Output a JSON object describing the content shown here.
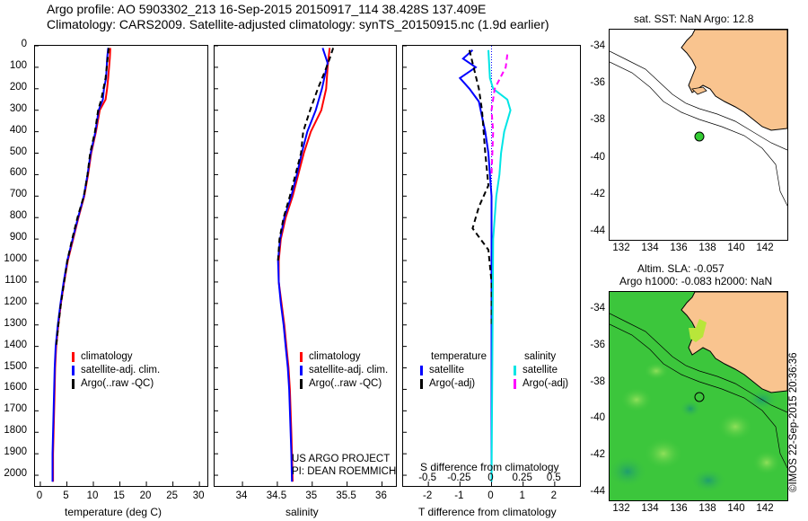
{
  "header": {
    "line1": "Argo profile: AO 5903302_213 16-Sep-2015 20150917_114 38.428S 137.409E",
    "line2": "Climatology: CARS2009. Satellite-adjusted climatology: synTS_20150915.nc (1.9d earlier)"
  },
  "depth_ticks": [
    "0",
    "100",
    "200",
    "300",
    "400",
    "500",
    "600",
    "700",
    "800",
    "900",
    "1000",
    "1100",
    "1200",
    "1300",
    "1400",
    "1500",
    "1600",
    "1700",
    "1800",
    "1900",
    "2000"
  ],
  "colors": {
    "climatology": "#ff0000",
    "satellite": "#0000ff",
    "argo": "#000000",
    "sal_sat": "#00e5e5",
    "sal_argo": "#ff00ff",
    "land": "#f9c48f",
    "sst_map_bg": "#ffffff",
    "sla_map_green": "#3cc63c"
  },
  "chart_data": [
    {
      "type": "line",
      "name": "temperature",
      "xlabel": "temperature (deg C)",
      "ylabel": "",
      "xlim": [
        -1,
        31.5
      ],
      "ylim": [
        2050,
        0
      ],
      "xticks": [
        "0",
        "5",
        "10",
        "15",
        "20",
        "25",
        "30"
      ],
      "series": [
        {
          "name": "climatology",
          "style": "solid",
          "color": "#ff0000",
          "points": [
            [
              13.2,
              10
            ],
            [
              13.1,
              60
            ],
            [
              12.8,
              150
            ],
            [
              12.6,
              200
            ],
            [
              12.3,
              250
            ],
            [
              11.2,
              300
            ],
            [
              10.5,
              400
            ],
            [
              9.6,
              500
            ],
            [
              9.0,
              600
            ],
            [
              8.3,
              700
            ],
            [
              7.2,
              800
            ],
            [
              6.2,
              900
            ],
            [
              5.2,
              1000
            ],
            [
              4.5,
              1100
            ],
            [
              3.9,
              1200
            ],
            [
              3.4,
              1300
            ],
            [
              3.0,
              1400
            ],
            [
              2.8,
              1500
            ],
            [
              2.7,
              1600
            ],
            [
              2.6,
              1700
            ],
            [
              2.5,
              1800
            ],
            [
              2.4,
              1900
            ],
            [
              2.4,
              2030
            ]
          ]
        },
        {
          "name": "satellite-adj. clim.",
          "style": "solid",
          "color": "#0000ff",
          "points": [
            [
              12.8,
              10
            ],
            [
              12.6,
              60
            ],
            [
              12.4,
              150
            ],
            [
              12.0,
              200
            ],
            [
              11.8,
              250
            ],
            [
              11.0,
              300
            ],
            [
              10.4,
              400
            ],
            [
              9.5,
              500
            ],
            [
              8.9,
              600
            ],
            [
              8.2,
              700
            ],
            [
              7.1,
              800
            ],
            [
              6.1,
              900
            ],
            [
              5.1,
              1000
            ],
            [
              4.4,
              1100
            ],
            [
              3.8,
              1200
            ],
            [
              3.3,
              1300
            ],
            [
              2.9,
              1400
            ],
            [
              2.7,
              1500
            ],
            [
              2.6,
              1600
            ],
            [
              2.5,
              1700
            ],
            [
              2.4,
              1800
            ],
            [
              2.3,
              1900
            ],
            [
              2.3,
              2030
            ]
          ]
        },
        {
          "name": "Argo(..raw -QC)",
          "style": "dashed",
          "color": "#000000",
          "points": [
            [
              12.9,
              10
            ],
            [
              12.7,
              60
            ],
            [
              12.3,
              150
            ],
            [
              11.9,
              200
            ],
            [
              11.5,
              250
            ],
            [
              10.9,
              300
            ],
            [
              10.3,
              400
            ],
            [
              9.4,
              500
            ],
            [
              8.9,
              600
            ],
            [
              8.2,
              700
            ],
            [
              7.0,
              800
            ],
            [
              6.0,
              900
            ],
            [
              5.1,
              1000
            ],
            [
              4.5,
              1100
            ],
            [
              3.9,
              1200
            ],
            [
              3.4,
              1300
            ],
            [
              3.0,
              1400
            ]
          ]
        }
      ],
      "legend": [
        "climatology",
        "satellite-adj. clim.",
        "Argo(..raw -QC)"
      ]
    },
    {
      "type": "line",
      "name": "salinity",
      "xlabel": "salinity",
      "xlim": [
        33.6,
        36.2
      ],
      "ylim": [
        2050,
        0
      ],
      "xticks": [
        "34",
        "34.5",
        "35",
        "35.5",
        "36"
      ],
      "series": [
        {
          "name": "climatology",
          "style": "solid",
          "color": "#ff0000",
          "points": [
            [
              35.25,
              10
            ],
            [
              35.22,
              100
            ],
            [
              35.2,
              200
            ],
            [
              35.13,
              300
            ],
            [
              34.98,
              400
            ],
            [
              34.88,
              500
            ],
            [
              34.8,
              600
            ],
            [
              34.72,
              700
            ],
            [
              34.62,
              800
            ],
            [
              34.55,
              900
            ],
            [
              34.52,
              1000
            ],
            [
              34.52,
              1100
            ],
            [
              34.56,
              1200
            ],
            [
              34.6,
              1300
            ],
            [
              34.63,
              1400
            ],
            [
              34.66,
              1500
            ],
            [
              34.68,
              1600
            ],
            [
              34.69,
              1700
            ],
            [
              34.7,
              1800
            ],
            [
              34.71,
              1900
            ],
            [
              34.72,
              2030
            ]
          ]
        },
        {
          "name": "satellite-adj. clim.",
          "style": "solid",
          "color": "#0000ff",
          "points": [
            [
              35.15,
              10
            ],
            [
              35.22,
              80
            ],
            [
              35.14,
              200
            ],
            [
              35.05,
              300
            ],
            [
              34.93,
              400
            ],
            [
              34.85,
              500
            ],
            [
              34.78,
              600
            ],
            [
              34.7,
              700
            ],
            [
              34.6,
              800
            ],
            [
              34.54,
              900
            ],
            [
              34.51,
              1000
            ],
            [
              34.52,
              1100
            ],
            [
              34.55,
              1200
            ],
            [
              34.59,
              1300
            ],
            [
              34.62,
              1400
            ],
            [
              34.65,
              1500
            ],
            [
              34.67,
              1600
            ],
            [
              34.68,
              1700
            ],
            [
              34.69,
              1800
            ],
            [
              34.7,
              1900
            ],
            [
              34.71,
              2030
            ]
          ]
        },
        {
          "name": "Argo(..raw -QC)",
          "style": "dashed",
          "color": "#000000",
          "points": [
            [
              35.3,
              10
            ],
            [
              35.25,
              60
            ],
            [
              35.18,
              120
            ],
            [
              35.08,
              200
            ],
            [
              34.97,
              300
            ],
            [
              34.87,
              400
            ],
            [
              34.84,
              500
            ],
            [
              34.76,
              600
            ],
            [
              34.68,
              700
            ],
            [
              34.59,
              800
            ],
            [
              34.53,
              900
            ],
            [
              34.51,
              1000
            ]
          ]
        }
      ],
      "legend": [
        "climatology",
        "satellite-adj. clim.",
        "Argo(..raw -QC)"
      ],
      "annotations": [
        "US ARGO PROJECT",
        "PI: DEAN ROEMMICH"
      ]
    },
    {
      "type": "line",
      "name": "difference",
      "xlabel": "T difference from climatology",
      "top_axis_label": "S difference from climatology",
      "xlim": [
        -2.8,
        2.8
      ],
      "ylim": [
        2050,
        0
      ],
      "xticks": [
        "-2",
        "-1",
        "0",
        "1",
        "2"
      ],
      "sticks": [
        "-0.5",
        "-0.25",
        "0",
        "0.25",
        "0.5"
      ],
      "series": [
        {
          "name": "temperature satellite",
          "style": "solid",
          "color": "#0000ff",
          "points": [
            [
              -0.6,
              20
            ],
            [
              -0.9,
              60
            ],
            [
              -0.5,
              100
            ],
            [
              -1.0,
              150
            ],
            [
              -0.7,
              200
            ],
            [
              -0.4,
              260
            ],
            [
              -0.3,
              330
            ],
            [
              -0.2,
              400
            ],
            [
              -0.1,
              500
            ],
            [
              -0.05,
              600
            ],
            [
              0.0,
              700
            ],
            [
              0.0,
              900
            ],
            [
              0.0,
              2030
            ]
          ]
        },
        {
          "name": "temperature Argo(-adj)",
          "style": "dashed",
          "color": "#000000",
          "points": [
            [
              -0.7,
              20
            ],
            [
              -0.6,
              80
            ],
            [
              -0.4,
              200
            ],
            [
              -0.3,
              300
            ],
            [
              -0.2,
              500
            ],
            [
              -0.1,
              650
            ],
            [
              -0.4,
              750
            ],
            [
              -0.6,
              850
            ],
            [
              -0.1,
              950
            ],
            [
              0.0,
              1100
            ],
            [
              0.0,
              1300
            ]
          ]
        },
        {
          "name": "salinity satellite",
          "style": "solid",
          "color": "#00e5e5",
          "points": [
            [
              -0.1,
              20
            ],
            [
              -0.05,
              150
            ],
            [
              0.05,
              200
            ],
            [
              0.5,
              250
            ],
            [
              0.6,
              300
            ],
            [
              0.4,
              400
            ],
            [
              0.3,
              500
            ],
            [
              0.25,
              600
            ],
            [
              0.15,
              700
            ],
            [
              0.05,
              900
            ],
            [
              0.0,
              2030
            ]
          ]
        },
        {
          "name": "salinity Argo(-adj)",
          "style": "dashed",
          "color": "#ff00ff",
          "points": [
            [
              0.5,
              40
            ],
            [
              0.45,
              100
            ],
            [
              0.1,
              200
            ],
            [
              0.0,
              300
            ],
            [
              0.05,
              400
            ],
            [
              0.0,
              600
            ]
          ]
        }
      ],
      "legend": [
        "temperature",
        "satellite",
        "Argo(-adj)",
        "salinity",
        "satellite",
        "Argo(-adj)"
      ]
    }
  ],
  "maps": {
    "sst": {
      "title": "sat. SST: NaN Argo: 12.8",
      "yticks": [
        "-34",
        "-36",
        "-38",
        "-40",
        "-42",
        "-44"
      ],
      "xticks": [
        "132",
        "134",
        "136",
        "138",
        "140",
        "142"
      ]
    },
    "sla": {
      "title1": "Altim. SLA: -0.057",
      "title2": "Argo h1000: -0.083 h2000: NaN",
      "yticks": [
        "-34",
        "-36",
        "-38",
        "-40",
        "-42",
        "-44"
      ],
      "xticks": [
        "132",
        "134",
        "136",
        "138",
        "140",
        "142"
      ]
    }
  },
  "credit": "©IMOS 22-Sep-2015 20:36:36"
}
